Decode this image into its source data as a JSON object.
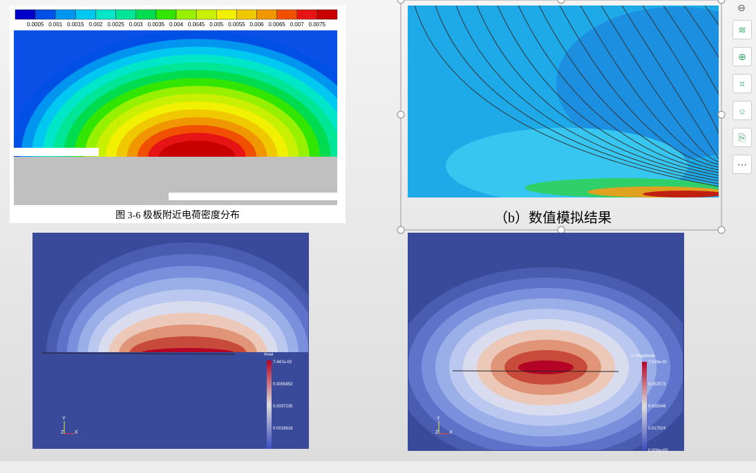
{
  "figure1": {
    "colorbar_labels": [
      "0.0005",
      "0.001",
      "0.0015",
      "0.002",
      "0.0025",
      "0.003",
      "0.0035",
      "0.004",
      "0.0045",
      "0.005",
      "0.0055",
      "0.006",
      "0.0065",
      "0.007",
      "0.0075"
    ],
    "caption": "图 3-6  极板附近电荷密度分布"
  },
  "figure2": {
    "caption": "（b）数值模拟结果"
  },
  "figure3": {
    "legend_title": "rhoel",
    "legend_labels": [
      "7.447e-03",
      "0.0055853",
      "0.0037235",
      "0.0018618"
    ],
    "axes": [
      "Y",
      "Z",
      "X"
    ]
  },
  "figure4": {
    "legend_title": "U Magnitude",
    "legend_labels": [
      "7.010e-02",
      "0.052573",
      "0.035048",
      "0.017524",
      "0.000e+00"
    ],
    "axes": [
      "Y",
      "Z",
      "X"
    ]
  }
}
